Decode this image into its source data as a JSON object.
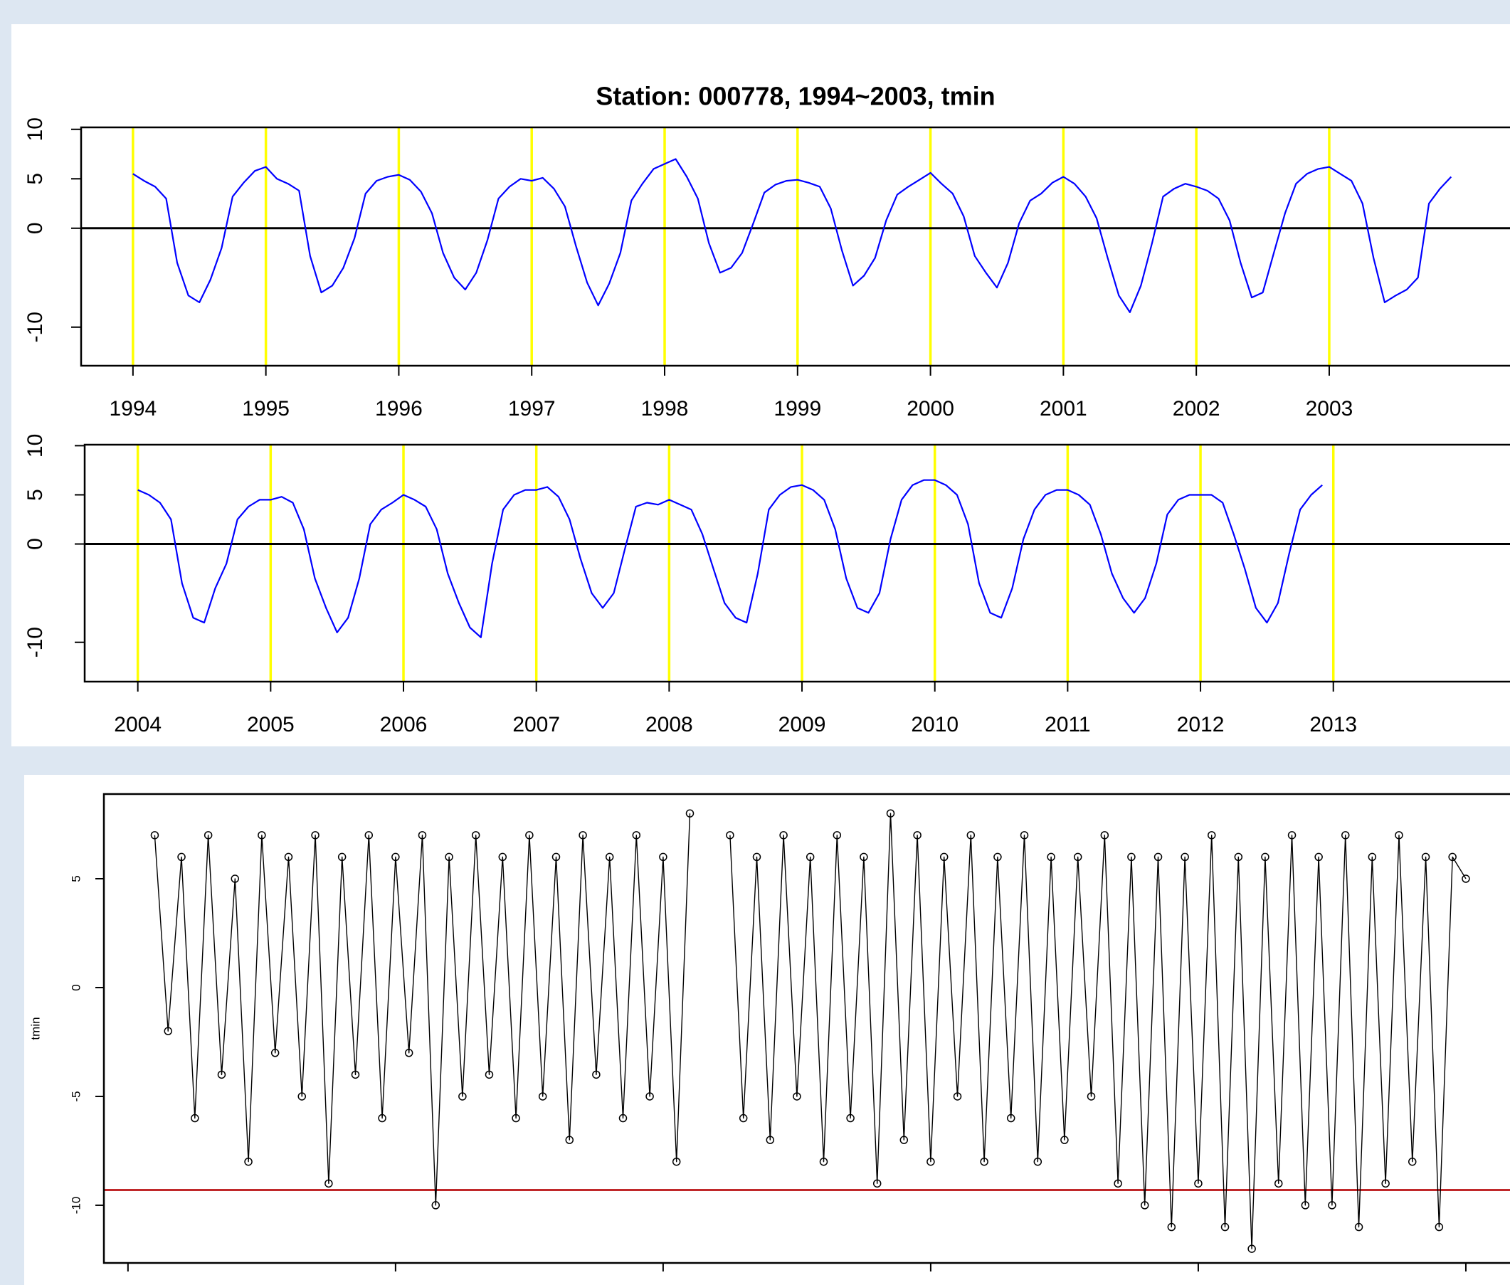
{
  "chart_data": [
    {
      "type": "line",
      "title": "Station: 000778, 1994~2003,  tmin",
      "color": "#0000ff",
      "markers": false,
      "xlim": [
        1993.61,
        2004.36
      ],
      "ylim": [
        -13.9,
        10.2
      ],
      "xticks": [
        1994,
        1995,
        1996,
        1997,
        1998,
        1999,
        2000,
        2001,
        2002,
        2003
      ],
      "yticks": [
        -10,
        0,
        5,
        10
      ],
      "vlines": [
        1994,
        1995,
        1996,
        1997,
        1998,
        1999,
        2000,
        2001,
        2002,
        2003
      ],
      "vline_color": "#ffff00",
      "hline": 0,
      "hline_color": "#000000",
      "x": [
        1994,
        1994.083,
        1994.167,
        1994.25,
        1994.333,
        1994.417,
        1994.5,
        1994.583,
        1994.667,
        1994.75,
        1994.833,
        1994.917,
        1995,
        1995.083,
        1995.167,
        1995.25,
        1995.333,
        1995.417,
        1995.5,
        1995.583,
        1995.667,
        1995.75,
        1995.833,
        1995.917,
        1996,
        1996.083,
        1996.167,
        1996.25,
        1996.333,
        1996.417,
        1996.5,
        1996.583,
        1996.667,
        1996.75,
        1996.833,
        1996.917,
        1997,
        1997.083,
        1997.167,
        1997.25,
        1997.333,
        1997.417,
        1997.5,
        1997.583,
        1997.667,
        1997.75,
        1997.833,
        1997.917,
        1998,
        1998.083,
        1998.167,
        1998.25,
        1998.333,
        1998.417,
        1998.5,
        1998.583,
        1998.667,
        1998.75,
        1998.833,
        1998.917,
        1999,
        1999.083,
        1999.167,
        1999.25,
        1999.333,
        1999.417,
        1999.5,
        1999.583,
        1999.667,
        1999.75,
        1999.833,
        1999.917,
        2000,
        2000.083,
        2000.167,
        2000.25,
        2000.333,
        2000.417,
        2000.5,
        2000.583,
        2000.667,
        2000.75,
        2000.833,
        2000.917,
        2001,
        2001.083,
        2001.167,
        2001.25,
        2001.333,
        2001.417,
        2001.5,
        2001.583,
        2001.667,
        2001.75,
        2001.833,
        2001.917,
        2002,
        2002.083,
        2002.167,
        2002.25,
        2002.333,
        2002.417,
        2002.5,
        2002.583,
        2002.667,
        2002.75,
        2002.833,
        2002.917,
        2003,
        2003.083,
        2003.167,
        2003.25,
        2003.333,
        2003.417,
        2003.5,
        2003.583,
        2003.667,
        2003.75,
        2003.833,
        2003.917
      ],
      "values": [
        5.5,
        4.8,
        4.2,
        3.0,
        -3.5,
        -6.8,
        -7.5,
        -5.2,
        -2.0,
        3.2,
        4.6,
        5.8,
        6.2,
        5.0,
        4.5,
        3.8,
        -2.8,
        -6.5,
        -5.8,
        -4.0,
        -1.0,
        3.5,
        4.8,
        5.2,
        5.4,
        4.9,
        3.7,
        1.5,
        -2.5,
        -5.0,
        -6.2,
        -4.5,
        -1.2,
        3.0,
        4.2,
        5.0,
        4.8,
        5.1,
        4.0,
        2.2,
        -1.8,
        -5.5,
        -7.8,
        -5.6,
        -2.5,
        2.8,
        4.5,
        6.0,
        6.5,
        7.0,
        5.2,
        3.0,
        -1.5,
        -4.5,
        -4.0,
        -2.5,
        0.5,
        3.6,
        4.4,
        4.8,
        4.9,
        4.6,
        4.2,
        2.0,
        -2.2,
        -5.8,
        -4.8,
        -3.0,
        0.8,
        3.4,
        4.2,
        4.9,
        5.6,
        4.5,
        3.5,
        1.2,
        -2.8,
        -4.5,
        -6.0,
        -3.5,
        0.5,
        2.8,
        3.5,
        4.6,
        5.2,
        4.5,
        3.2,
        1.0,
        -3.0,
        -6.8,
        -8.5,
        -5.8,
        -1.5,
        3.2,
        4.0,
        4.5,
        4.2,
        3.8,
        3.0,
        0.8,
        -3.5,
        -7.0,
        -6.5,
        -2.5,
        1.5,
        4.5,
        5.5,
        6.0,
        6.2,
        5.5,
        4.8,
        2.5,
        -3.0,
        -7.5,
        -6.8,
        -6.2,
        -5.0,
        2.5,
        4.0,
        5.2
      ]
    },
    {
      "type": "line",
      "color": "#0000ff",
      "markers": false,
      "xlim": [
        2003.6,
        2014.33
      ],
      "ylim": [
        -14.0,
        10.1
      ],
      "xticks": [
        2004,
        2005,
        2006,
        2007,
        2008,
        2009,
        2010,
        2011,
        2012,
        2013
      ],
      "yticks": [
        -10,
        0,
        5,
        10
      ],
      "vlines": [
        2004,
        2005,
        2006,
        2007,
        2008,
        2009,
        2010,
        2011,
        2012,
        2013
      ],
      "vline_color": "#ffff00",
      "hline": 0,
      "hline_color": "#000000",
      "x": [
        2004,
        2004.083,
        2004.167,
        2004.25,
        2004.333,
        2004.417,
        2004.5,
        2004.583,
        2004.667,
        2004.75,
        2004.833,
        2004.917,
        2005,
        2005.083,
        2005.167,
        2005.25,
        2005.333,
        2005.417,
        2005.5,
        2005.583,
        2005.667,
        2005.75,
        2005.833,
        2005.917,
        2006,
        2006.083,
        2006.167,
        2006.25,
        2006.333,
        2006.417,
        2006.5,
        2006.583,
        2006.667,
        2006.75,
        2006.833,
        2006.917,
        2007,
        2007.083,
        2007.167,
        2007.25,
        2007.333,
        2007.417,
        2007.5,
        2007.583,
        2007.667,
        2007.75,
        2007.833,
        2007.917,
        2008,
        2008.083,
        2008.167,
        2008.25,
        2008.333,
        2008.417,
        2008.5,
        2008.583,
        2008.667,
        2008.75,
        2008.833,
        2008.917,
        2009,
        2009.083,
        2009.167,
        2009.25,
        2009.333,
        2009.417,
        2009.5,
        2009.583,
        2009.667,
        2009.75,
        2009.833,
        2009.917,
        2010,
        2010.083,
        2010.167,
        2010.25,
        2010.333,
        2010.417,
        2010.5,
        2010.583,
        2010.667,
        2010.75,
        2010.833,
        2010.917,
        2011,
        2011.083,
        2011.167,
        2011.25,
        2011.333,
        2011.417,
        2011.5,
        2011.583,
        2011.667,
        2011.75,
        2011.833,
        2011.917,
        2012,
        2012.083,
        2012.167,
        2012.25,
        2012.333,
        2012.417,
        2012.5,
        2012.583,
        2012.667,
        2012.75,
        2012.833,
        2012.917
      ],
      "values": [
        5.5,
        5.0,
        4.2,
        2.5,
        -4.0,
        -7.5,
        -8.0,
        -4.5,
        -2.0,
        2.5,
        3.8,
        4.5,
        4.5,
        4.8,
        4.2,
        1.5,
        -3.5,
        -6.5,
        -9.0,
        -7.5,
        -3.5,
        2.0,
        3.5,
        4.2,
        5.0,
        4.5,
        3.8,
        1.5,
        -3.0,
        -6.0,
        -8.5,
        -9.5,
        -2.0,
        3.5,
        5.0,
        5.5,
        5.5,
        5.8,
        4.8,
        2.5,
        -1.5,
        -5.0,
        -6.5,
        -5.0,
        -0.5,
        3.8,
        4.2,
        4.0,
        4.5,
        4.0,
        3.5,
        1.0,
        -2.5,
        -6.0,
        -7.5,
        -8.0,
        -3.0,
        3.5,
        5.0,
        5.8,
        6.0,
        5.5,
        4.5,
        1.5,
        -3.5,
        -6.5,
        -7.0,
        -5.0,
        0.5,
        4.5,
        6.0,
        6.5,
        6.5,
        6.0,
        5.0,
        2.0,
        -4.0,
        -7.0,
        -7.5,
        -4.5,
        0.5,
        3.5,
        5.0,
        5.5,
        5.5,
        5.0,
        4.0,
        1.0,
        -3.0,
        -5.5,
        -7.0,
        -5.5,
        -2.0,
        3.0,
        4.5,
        5.0,
        5.0,
        5.0,
        4.2,
        1.0,
        -2.5,
        -6.5,
        -8.0,
        -6.0,
        -1.0,
        3.5,
        5.0,
        6.0
      ]
    },
    {
      "type": "line",
      "ylabel": "tmin",
      "color": "#000000",
      "markers": true,
      "xtick_labels": false,
      "xlim": [
        -90,
        5165
      ],
      "ylim": [
        -12.65,
        8.89
      ],
      "xticks": [
        0,
        1000,
        2000,
        3000,
        4000,
        5000
      ],
      "yticks": [
        -10,
        -5,
        0,
        5
      ],
      "hline": -9.3,
      "hline_color": "#c0282a",
      "x": [
        100,
        150,
        200,
        250,
        300,
        350,
        400,
        450,
        500,
        550,
        600,
        650,
        700,
        750,
        800,
        850,
        900,
        950,
        1000,
        1050,
        1100,
        1150,
        1200,
        1250,
        1300,
        1350,
        1400,
        1450,
        1500,
        1550,
        1600,
        1650,
        1700,
        1750,
        1800,
        1850,
        1900,
        1950,
        2000,
        2050,
        2100,
        2175,
        2250,
        2300,
        2350,
        2400,
        2450,
        2500,
        2550,
        2600,
        2650,
        2700,
        2750,
        2800,
        2850,
        2900,
        2950,
        3000,
        3050,
        3100,
        3150,
        3200,
        3250,
        3300,
        3350,
        3400,
        3450,
        3500,
        3550,
        3600,
        3650,
        3700,
        3750,
        3800,
        3850,
        3900,
        3950,
        4000,
        4050,
        4100,
        4150,
        4200,
        4250,
        4300,
        4350,
        4400,
        4450,
        4500,
        4550,
        4600,
        4650,
        4700,
        4750,
        4800,
        4850,
        4900,
        4950,
        5000
      ],
      "values": [
        7,
        -2,
        6,
        -6,
        7,
        -4,
        5,
        -8,
        7,
        -3,
        6,
        -5,
        7,
        -9,
        6,
        -4,
        7,
        -6,
        6,
        -3,
        7,
        -10,
        6,
        -5,
        7,
        -4,
        6,
        -6,
        7,
        -5,
        6,
        -7,
        7,
        -4,
        6,
        -6,
        7,
        -5,
        6,
        -8,
        8,
        null,
        7,
        -6,
        6,
        -7,
        7,
        -5,
        6,
        -8,
        7,
        -6,
        6,
        -9,
        8,
        -7,
        7,
        -8,
        6,
        -5,
        7,
        -8,
        6,
        -6,
        7,
        -8,
        6,
        -7,
        6,
        -5,
        7,
        -9,
        6,
        -10,
        6,
        -11,
        6,
        -9,
        7,
        -11,
        6,
        -12,
        6,
        -9,
        7,
        -10,
        6,
        -10,
        7,
        -11,
        6,
        -9,
        7,
        -8,
        6,
        -11,
        6,
        5
      ]
    }
  ]
}
